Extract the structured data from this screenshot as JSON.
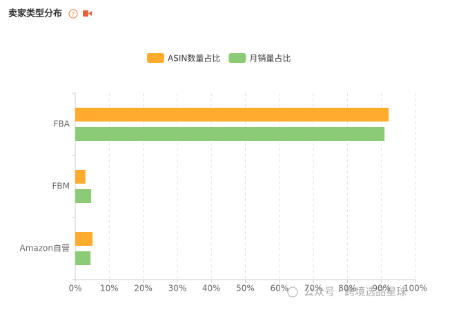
{
  "chart_data": {
    "type": "hbar",
    "title": "卖家类型分布",
    "categories": [
      "FBA",
      "FBM",
      "Amazon自营"
    ],
    "series": [
      {
        "name": "ASIN数量占比",
        "color": "#ffab2e",
        "values": [
          92.1,
          3.0,
          5.1
        ]
      },
      {
        "name": "月销量占比",
        "color": "#8ccb75",
        "values": [
          90.9,
          4.7,
          4.5
        ]
      }
    ],
    "xlim": [
      0,
      100
    ],
    "xticks": [
      {
        "value": 0,
        "label": "0%"
      },
      {
        "value": 10,
        "label": "10%"
      },
      {
        "value": 20,
        "label": "20%"
      },
      {
        "value": 30,
        "label": "30%"
      },
      {
        "value": 40,
        "label": "40%"
      },
      {
        "value": 50,
        "label": "50%"
      },
      {
        "value": 60,
        "label": "60%"
      },
      {
        "value": 70,
        "label": "70%"
      },
      {
        "value": 80,
        "label": "80%"
      },
      {
        "value": 90,
        "label": "90%"
      },
      {
        "value": 100,
        "label": "100%"
      }
    ],
    "grid": true,
    "legend": "top"
  },
  "watermark": "公众号 · 跨境选品星球"
}
